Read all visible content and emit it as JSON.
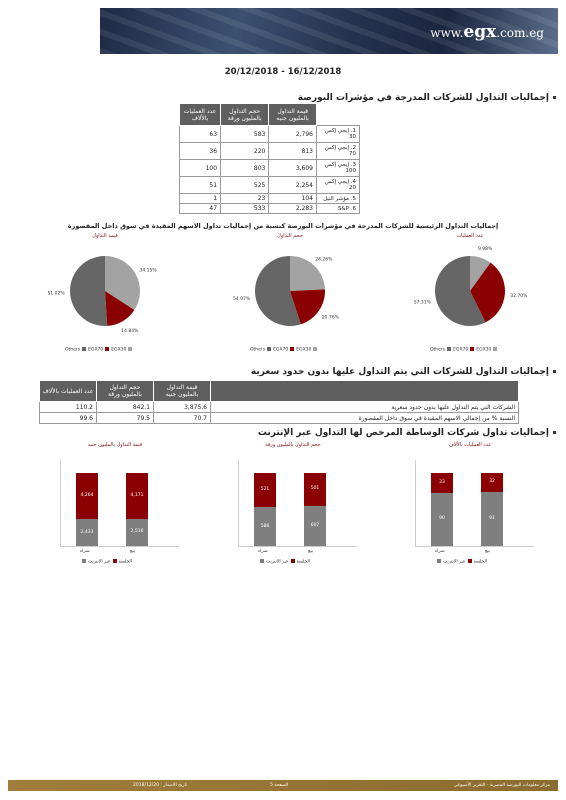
{
  "header": {
    "logo_www": "www.",
    "logo_brand": "egx",
    "logo_domain": ".com.eg"
  },
  "date_range": "20/12/2018 - 16/12/2018",
  "section1": {
    "title": "إجماليات التداول للشركات المدرجة في مؤشرات البورصة"
  },
  "table1": {
    "headers": [
      "عدد العمليات بالألاف",
      "حجم التداول بالمليون ورقة",
      "قيمة التداول بالمليون جنيه",
      ""
    ],
    "rows": [
      {
        "ops": "63",
        "vol": "583",
        "val": "2,796",
        "label": "1. إيجي إكس 30"
      },
      {
        "ops": "36",
        "vol": "220",
        "val": "813",
        "label": "2. إيجي إكس 70"
      },
      {
        "ops": "100",
        "vol": "803",
        "val": "3,609",
        "label": "3. إيجي إكس 100"
      },
      {
        "ops": "51",
        "vol": "525",
        "val": "2,254",
        "label": "4. إيجي إكس 20"
      },
      {
        "ops": "1",
        "vol": "23",
        "val": "104",
        "label": "5. مؤشر النيل"
      },
      {
        "ops": "47",
        "vol": "533",
        "val": "2,283",
        "label": "S&P .6"
      }
    ]
  },
  "pies_title": "إجماليات التداول الرئيسية للشركات المدرجة في مؤشرات البورصة كنسبة من إجماليات تداول الاسهم المقيدة في سوق داخل المقصورة",
  "chart_data": [
    {
      "type": "pie",
      "title": "قيمة التداول",
      "labels": [
        "EGX30",
        "EGX70",
        "Others"
      ],
      "values": [
        34.15,
        14.84,
        51.02
      ],
      "value_labels": [
        "34.15%",
        "14.84%",
        "51.02%"
      ],
      "legend": [
        "Others",
        "EGX70",
        "EGX30"
      ]
    },
    {
      "type": "pie",
      "title": "حجم التداول",
      "labels": [
        "EGX30",
        "EGX70",
        "Others"
      ],
      "values": [
        24.26,
        20.76,
        54.97
      ],
      "value_labels": [
        "24.26%",
        "20.76%",
        "54.97%"
      ],
      "legend": [
        "Others",
        "EGX70",
        "EGX30"
      ]
    },
    {
      "type": "pie",
      "title": "عدد العمليات",
      "labels": [
        "EGX30",
        "EGX70",
        "Others"
      ],
      "values": [
        9.98,
        32.7,
        57.31
      ],
      "value_labels": [
        "9.98%",
        "32.70%",
        "57.31%"
      ],
      "legend": [
        "Others",
        "EGX70",
        "EGX30"
      ]
    },
    {
      "type": "bar",
      "title": "قيمة التداول بالمليون جنيه",
      "categories": [
        "شراء",
        "بيع"
      ],
      "series": [
        {
          "name": "الجلسة",
          "values": [
            2433,
            2516
          ]
        },
        {
          "name": "عبر الانترنت",
          "values": [
            4264,
            4171
          ]
        }
      ],
      "legend": [
        "الجلسة",
        "عبر الانترنت"
      ]
    },
    {
      "type": "bar",
      "title": "حجم التداول بالمليون ورقة",
      "categories": [
        "شراء",
        "بيع"
      ],
      "series": [
        {
          "name": "الجلسة",
          "values": [
            586,
            607
          ]
        },
        {
          "name": "عبر الانترنت",
          "values": [
            521,
            501
          ]
        }
      ],
      "legend": [
        "الجلسة",
        "عبر الانترنت"
      ]
    },
    {
      "type": "bar",
      "title": "عدد العمليات بالألاف",
      "categories": [
        "شراء",
        "بيع"
      ],
      "series": [
        {
          "name": "الجلسة",
          "values": [
            90,
            91
          ]
        },
        {
          "name": "عبر الانترنت",
          "values": [
            33,
            32
          ]
        }
      ],
      "legend": [
        "الجلسة",
        "عبر الانترنت"
      ]
    }
  ],
  "colors": {
    "seg_top": "#a3a3a3",
    "seg_mid": "#8b0000",
    "seg_rest": "#666666",
    "bar_session": "#7f7f7f",
    "bar_online": "#8b0000"
  },
  "section2": {
    "title": "إجماليات التداول للشركات التي يتم التداول عليها بدون حدود سعرية"
  },
  "table2": {
    "headers": [
      "عدد العمليات بالألاف",
      "حجم التداول بالمليون ورقة",
      "قيمة التداول بالمليون جنيه",
      ""
    ],
    "rows": [
      {
        "ops": "110.2",
        "vol": "842.1",
        "val": "3,875.6",
        "label": "الشركات التي يتم التداول عليها بدون حدود سعرية"
      },
      {
        "ops": "99.6",
        "vol": "79.5",
        "val": "70.7",
        "label": "النسبة % من إجمالي الاسهم المقيدة في سوق داخل المقصورة"
      }
    ]
  },
  "section3": {
    "title": "إجماليات تداول شركات الوساطة المرخص لها التداول عبر الإنترنت"
  },
  "footer": {
    "left": "مركز معلومات البورصة المصرية - التقرير الأسبوعي",
    "page": "الصفحة 5",
    "date": "تاريخ الاصدار : 2018/12/20"
  }
}
